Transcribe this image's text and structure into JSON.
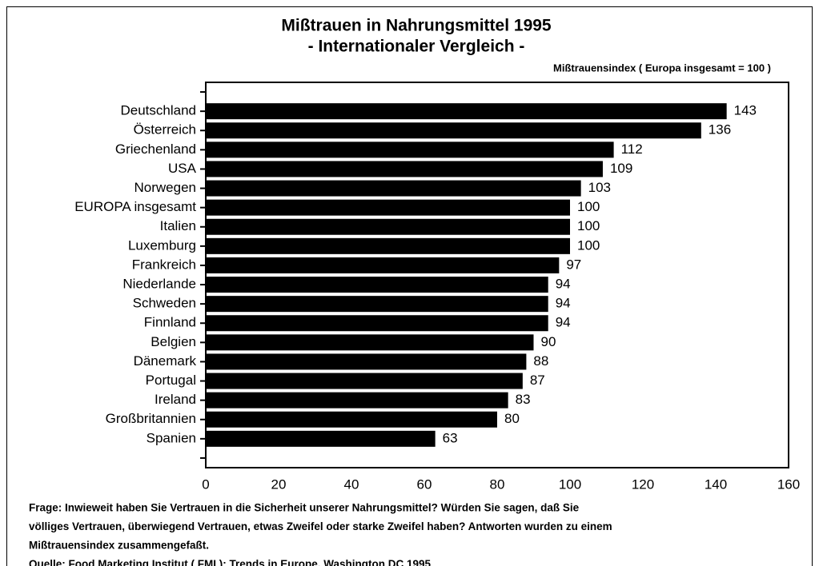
{
  "chart_data": {
    "type": "barh",
    "title": "Mißtrauen in Nahrungsmittel 1995",
    "subtitle": "- Internationaler Vergleich -",
    "axis_note": "Mißtrauensindex ( Europa insgesamt = 100 )",
    "categories": [
      "Deutschland",
      "Österreich",
      "Griechenland",
      "USA",
      "Norwegen",
      "EUROPA insgesamt",
      "Italien",
      "Luxemburg",
      "Frankreich",
      "Niederlande",
      "Schweden",
      "Finnland",
      "Belgien",
      "Dänemark",
      "Portugal",
      "Ireland",
      "Großbritannien",
      "Spanien"
    ],
    "values": [
      143,
      136,
      112,
      109,
      103,
      100,
      100,
      100,
      97,
      94,
      94,
      94,
      90,
      88,
      87,
      83,
      80,
      63
    ],
    "color": "#000000",
    "xlim": [
      0,
      160
    ],
    "xticks": [
      0,
      20,
      40,
      60,
      80,
      100,
      120,
      140,
      160
    ],
    "notes": [
      "Frage: Inwieweit haben Sie Vertrauen in die Sicherheit unserer Nahrungsmittel? Würden Sie sagen, daß Sie",
      "völliges Vertrauen, überwiegend Vertrauen, etwas Zweifel oder starke Zweifel haben? Antworten wurden zu einem",
      "Mißtrauensindex zusammengefaßt.",
      "Quelle: Food Marketing Institut ( FMI ): Trends in Europe, Washington DC 1995"
    ]
  }
}
